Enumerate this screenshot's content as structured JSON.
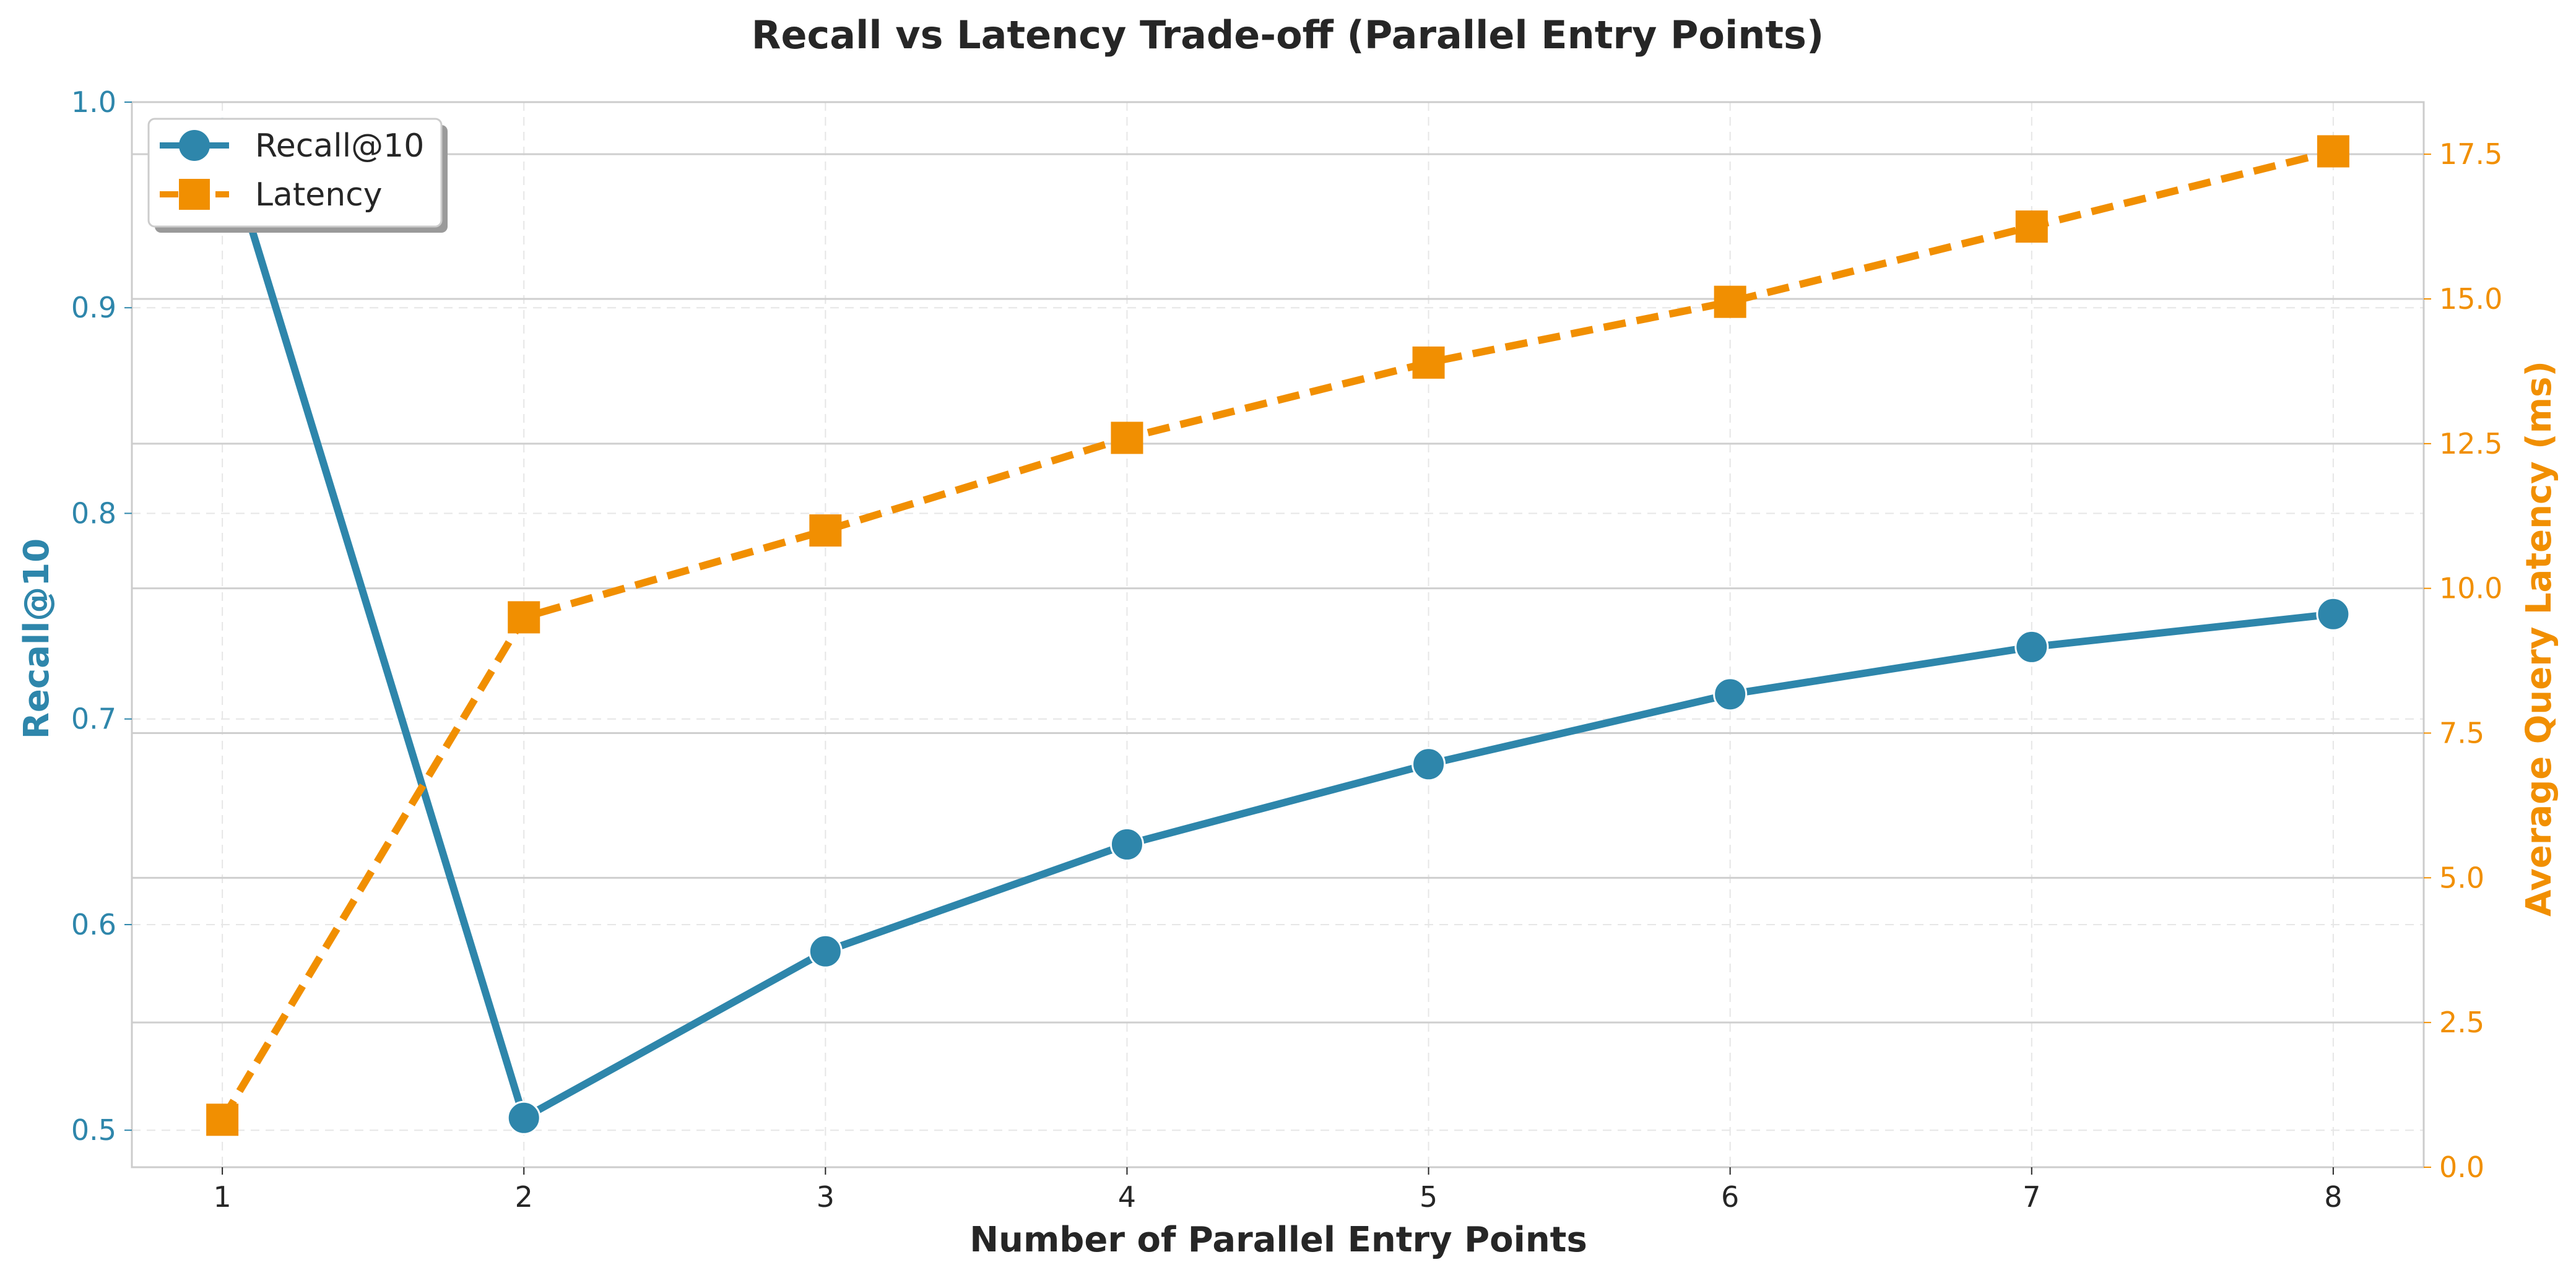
{
  "chart_data": {
    "type": "line",
    "title": "Recall vs Latency Trade-off (Parallel Entry Points)",
    "xlabel": "Number of Parallel Entry Points",
    "ylabel_left": "Recall@10",
    "ylabel_right": "Average Query Latency (ms)",
    "x": [
      1,
      2,
      3,
      4,
      5,
      6,
      7,
      8
    ],
    "xlim": [
      0.7,
      8.3
    ],
    "ylim_left": [
      0.482,
      1.0
    ],
    "ylim_right": [
      0.0,
      18.4
    ],
    "left_ticks": [
      "0.5",
      "0.6",
      "0.7",
      "0.8",
      "0.9",
      "1.0"
    ],
    "right_ticks": [
      "0.0",
      "2.5",
      "5.0",
      "7.5",
      "10.0",
      "12.5",
      "15.0",
      "17.5"
    ],
    "x_ticks": [
      "1",
      "2",
      "3",
      "4",
      "5",
      "6",
      "7",
      "8"
    ],
    "grid": true,
    "legend_position": "upper-left",
    "series": [
      {
        "name": "Recall@10",
        "axis": "left",
        "color": "#2E86AB",
        "marker": "circle",
        "line_style": "solid",
        "values": [
          0.985,
          0.506,
          0.587,
          0.639,
          0.678,
          0.712,
          0.735,
          0.751
        ]
      },
      {
        "name": "Latency",
        "axis": "right",
        "color": "#F18F01",
        "marker": "square",
        "line_style": "dashed",
        "values": [
          0.82,
          9.5,
          11.0,
          12.6,
          13.9,
          14.95,
          16.25,
          17.55
        ]
      }
    ],
    "colors": {
      "left_axis": "#2E86AB",
      "right_axis": "#F18F01",
      "text": "#262626",
      "grid": "#cccccc",
      "frame": "#cccccc"
    }
  }
}
